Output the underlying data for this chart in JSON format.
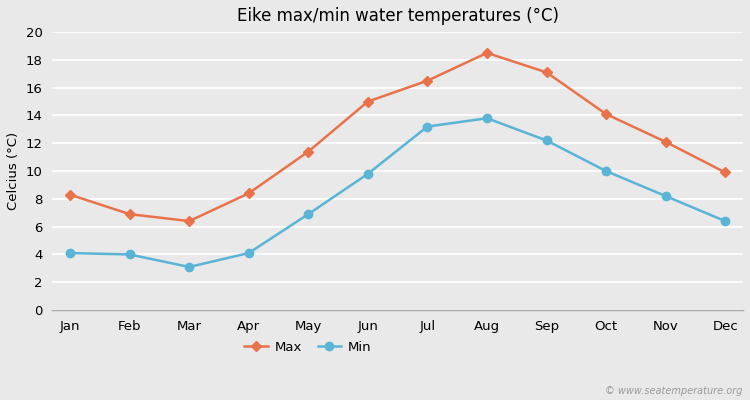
{
  "title": "Eike max/min water temperatures (°C)",
  "months": [
    "Jan",
    "Feb",
    "Mar",
    "Apr",
    "May",
    "Jun",
    "Jul",
    "Aug",
    "Sep",
    "Oct",
    "Nov",
    "Dec"
  ],
  "max_values": [
    8.3,
    6.9,
    6.4,
    8.4,
    11.4,
    15.0,
    16.5,
    18.5,
    17.1,
    14.1,
    12.1,
    9.9
  ],
  "min_values": [
    4.1,
    4.0,
    3.1,
    4.1,
    6.9,
    9.8,
    13.2,
    13.8,
    12.2,
    10.0,
    8.2,
    6.4
  ],
  "max_color": "#e8724a",
  "min_color": "#5ab4d6",
  "bg_color": "#e9e9e9",
  "plot_bg_color": "#e9e9e9",
  "grid_color": "#ffffff",
  "ylabel": "Celcius (°C)",
  "ylim": [
    0,
    20
  ],
  "yticks": [
    0,
    2,
    4,
    6,
    8,
    10,
    12,
    14,
    16,
    18,
    20
  ],
  "watermark": "© www.seatemperature.org",
  "legend_max": "Max",
  "legend_min": "Min",
  "spine_color": "#aaaaaa"
}
